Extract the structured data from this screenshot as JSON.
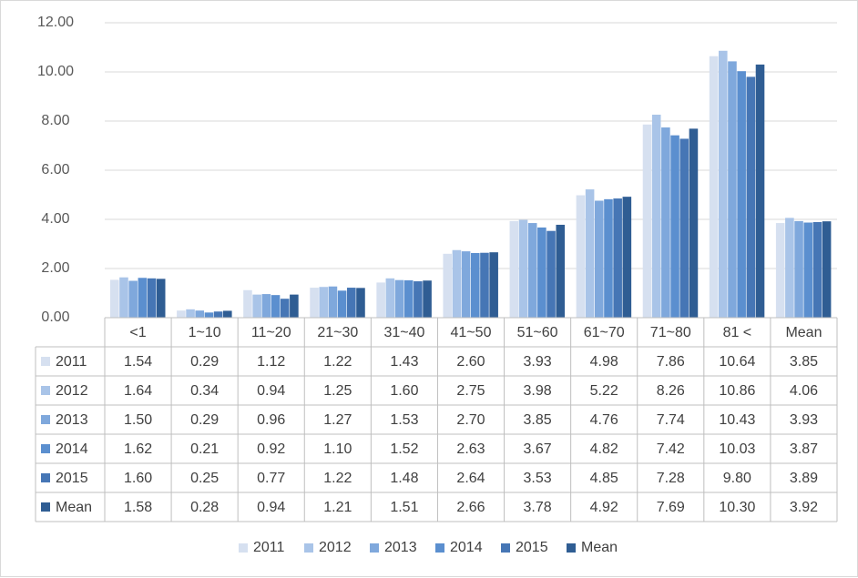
{
  "chart_data": {
    "type": "bar",
    "categories": [
      "<1",
      "1~10",
      "11~20",
      "21~30",
      "31~40",
      "41~50",
      "51~60",
      "61~70",
      "71~80",
      "81 <",
      "Mean"
    ],
    "ylim": [
      0,
      12
    ],
    "yticks": [
      "0.00",
      "2.00",
      "4.00",
      "6.00",
      "8.00",
      "10.00",
      "12.00"
    ],
    "grid": true,
    "legend_position": "bottom",
    "data_table": true,
    "series": [
      {
        "name": "2011",
        "color": "#d6e0f0",
        "values": [
          1.54,
          0.29,
          1.12,
          1.22,
          1.43,
          2.6,
          3.93,
          4.98,
          7.86,
          10.64,
          3.85
        ],
        "labels": [
          "1.54",
          "0.29",
          "1.12",
          "1.22",
          "1.43",
          "2.60",
          "3.93",
          "4.98",
          "7.86",
          "10.64",
          "3.85"
        ]
      },
      {
        "name": "2012",
        "color": "#a9c4e8",
        "values": [
          1.64,
          0.34,
          0.94,
          1.25,
          1.6,
          2.75,
          3.98,
          5.22,
          8.26,
          10.86,
          4.06
        ],
        "labels": [
          "1.64",
          "0.34",
          "0.94",
          "1.25",
          "1.60",
          "2.75",
          "3.98",
          "5.22",
          "8.26",
          "10.86",
          "4.06"
        ]
      },
      {
        "name": "2013",
        "color": "#7fa8dc",
        "values": [
          1.5,
          0.29,
          0.96,
          1.27,
          1.53,
          2.7,
          3.85,
          4.76,
          7.74,
          10.43,
          3.93
        ],
        "labels": [
          "1.50",
          "0.29",
          "0.96",
          "1.27",
          "1.53",
          "2.70",
          "3.85",
          "4.76",
          "7.74",
          "10.43",
          "3.93"
        ]
      },
      {
        "name": "2014",
        "color": "#5b8fcf",
        "values": [
          1.62,
          0.21,
          0.92,
          1.1,
          1.52,
          2.63,
          3.67,
          4.82,
          7.42,
          10.03,
          3.87
        ],
        "labels": [
          "1.62",
          "0.21",
          "0.92",
          "1.10",
          "1.52",
          "2.63",
          "3.67",
          "4.82",
          "7.42",
          "10.03",
          "3.87"
        ]
      },
      {
        "name": "2015",
        "color": "#4676b5",
        "values": [
          1.6,
          0.25,
          0.77,
          1.22,
          1.48,
          2.64,
          3.53,
          4.85,
          7.28,
          9.8,
          3.89
        ],
        "labels": [
          "1.60",
          "0.25",
          "0.77",
          "1.22",
          "1.48",
          "2.64",
          "3.53",
          "4.85",
          "7.28",
          "9.80",
          "3.89"
        ]
      },
      {
        "name": "Mean",
        "color": "#2f5d93",
        "values": [
          1.58,
          0.28,
          0.94,
          1.21,
          1.51,
          2.66,
          3.78,
          4.92,
          7.69,
          10.3,
          3.92
        ],
        "labels": [
          "1.58",
          "0.28",
          "0.94",
          "1.21",
          "1.51",
          "2.66",
          "3.78",
          "4.92",
          "7.69",
          "10.30",
          "3.92"
        ]
      }
    ]
  },
  "colors": {
    "gridline": "#d9d9d9",
    "table_border": "#bfbfbf",
    "frame": "#d9d9d9"
  }
}
